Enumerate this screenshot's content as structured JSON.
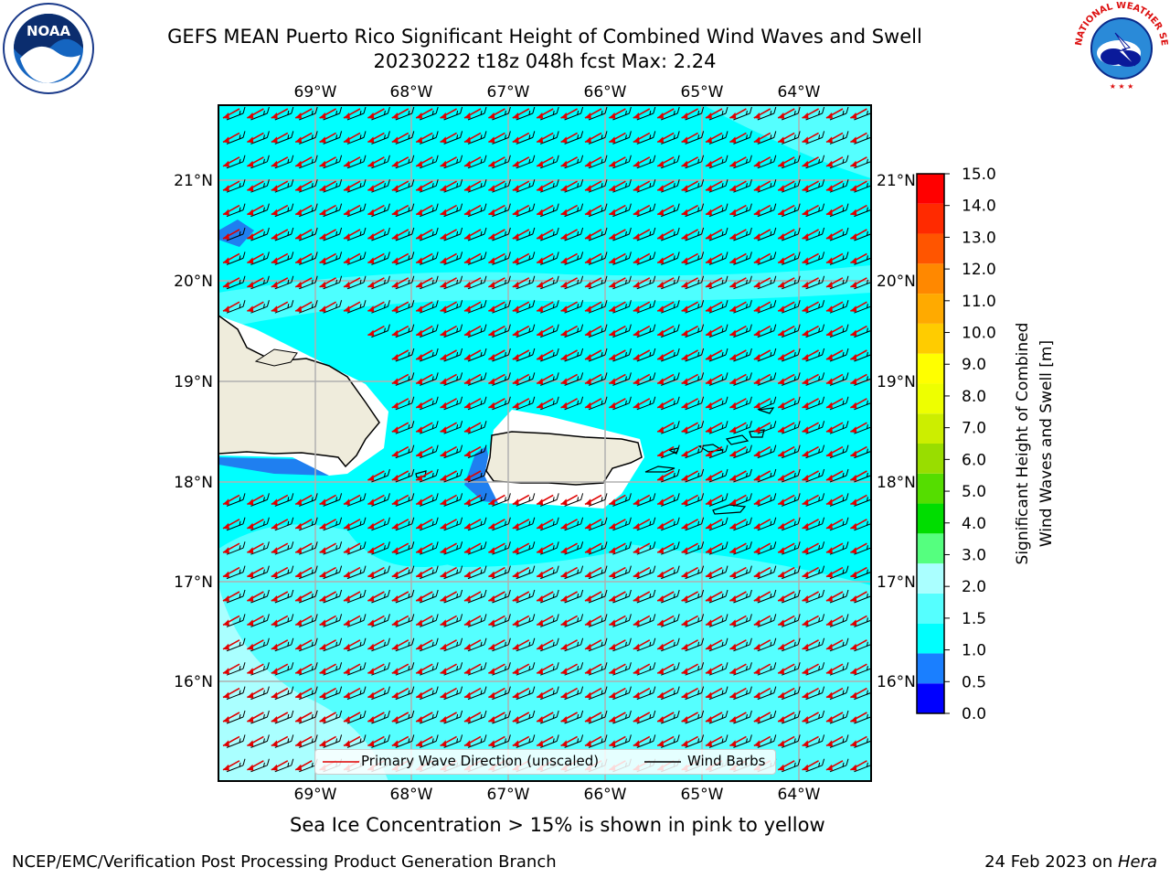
{
  "header": {
    "title_line1": "GEFS MEAN Puerto Rico Significant Height of Combined Wind Waves and Swell",
    "title_line2": "20230222 t18z 048h fcst   Max: 2.24"
  },
  "map": {
    "lon_labels": [
      "69°W",
      "68°W",
      "67°W",
      "66°W",
      "65°W",
      "64°W"
    ],
    "lat_labels": [
      "21°N",
      "20°N",
      "19°N",
      "18°N",
      "17°N",
      "16°N"
    ],
    "colors": {
      "land": "#efecdc",
      "ocean_main": "#00ffff",
      "ocean_light": "#55ffff",
      "ocean_pale": "#aaffff",
      "shallow": "#1f7ff0",
      "wave_arrow": "#e00000",
      "wind_barb": "#000000"
    }
  },
  "legend": {
    "wave_label": "Primary Wave Direction (unscaled)",
    "barb_label": "Wind Barbs"
  },
  "colorbar": {
    "label_line1": "Significant Height of Combined",
    "label_line2": "Wind Waves and Swell [m]",
    "ticks": [
      "0.0",
      "0.5",
      "1.0",
      "1.5",
      "2.0",
      "3.0",
      "4.0",
      "5.0",
      "6.0",
      "7.0",
      "8.0",
      "9.0",
      "10.0",
      "11.0",
      "12.0",
      "13.0",
      "14.0",
      "15.0"
    ],
    "colors": [
      "#0000ff",
      "#1a7fff",
      "#00ffff",
      "#55ffff",
      "#aaffff",
      "#55ff7f",
      "#00dd00",
      "#55dd00",
      "#99dd00",
      "#ccee00",
      "#eeff00",
      "#ffff00",
      "#ffcc00",
      "#ffaa00",
      "#ff8800",
      "#ff5500",
      "#ff2a00",
      "#ff0000"
    ]
  },
  "note": "Sea Ice Concentration > 15% is shown in pink to yellow",
  "footer": {
    "left": "NCEP/EMC/Verification Post Processing Product Generation Branch",
    "right_prefix": "24 Feb 2023 on ",
    "right_host": "Hera"
  },
  "logos": {
    "noaa_text": "NOAA",
    "nws_text": "NATIONAL WEATHER SERVICE"
  }
}
